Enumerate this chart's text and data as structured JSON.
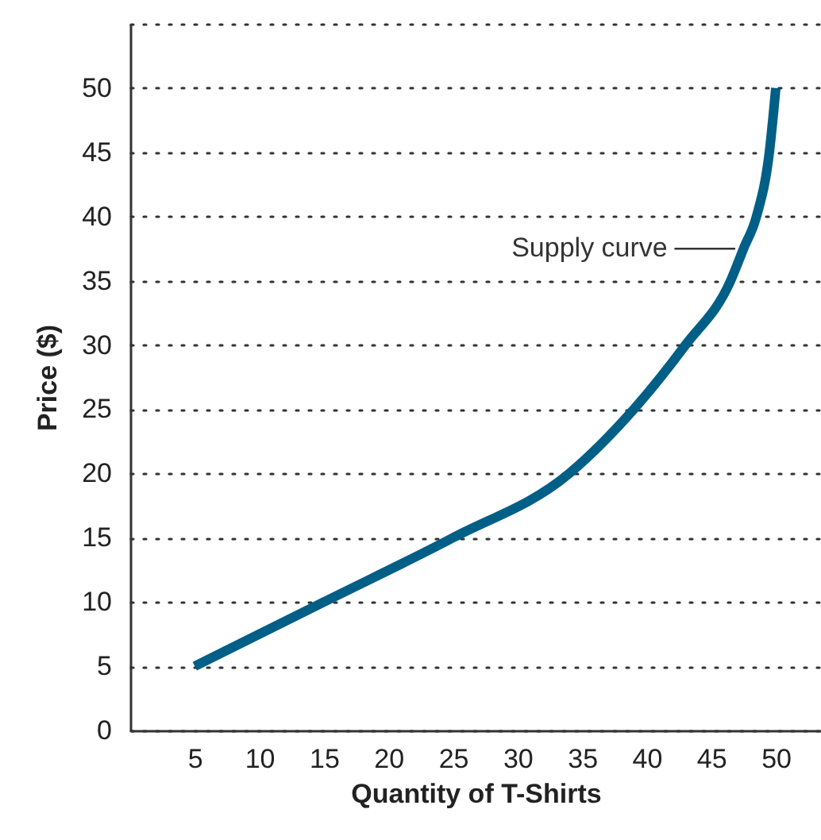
{
  "chart_data": {
    "type": "line",
    "xlabel": "Quantity of T-Shirts",
    "ylabel": "Price ($)",
    "x": [
      5,
      15,
      25,
      34,
      39,
      43,
      46.5,
      47.5,
      48.5,
      49.5,
      50
    ],
    "series": [
      {
        "name": "Supply curve",
        "color": "#005f86",
        "values": [
          5,
          10,
          15,
          20,
          25,
          30,
          35,
          37.5,
          40,
          45,
          50
        ]
      }
    ],
    "xlim": [
      0,
      53.5
    ],
    "ylim": [
      0,
      55
    ],
    "xticks": [
      5,
      10,
      15,
      20,
      25,
      30,
      35,
      40,
      45,
      50
    ],
    "yticks": [
      0,
      5,
      10,
      15,
      20,
      25,
      30,
      35,
      40,
      45,
      50,
      {
        "value": 55,
        "label": null
      }
    ],
    "grid": "y",
    "legend": false,
    "marker": "none",
    "line_style": "solid"
  }
}
